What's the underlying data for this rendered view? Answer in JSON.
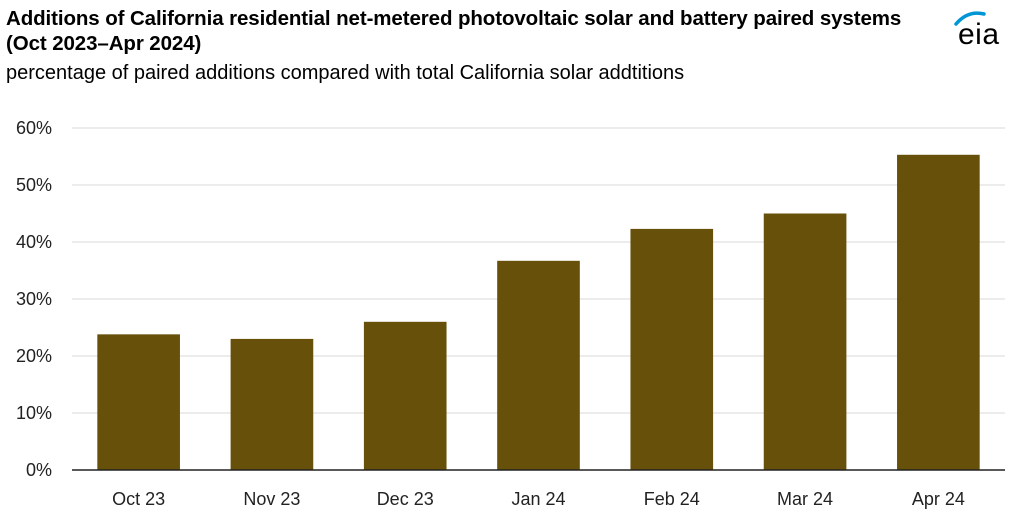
{
  "header": {
    "title": "Additions of California residential net-metered photovoltaic solar and battery paired systems (Oct 2023–Apr 2024)",
    "subtitle": "percentage of paired additions compared with total California solar addtitions"
  },
  "logo": {
    "text": "eia",
    "accent_color": "#0096d6"
  },
  "colors": {
    "bar": "#67510a",
    "grid": "#d9d9d9",
    "axis": "#222222"
  },
  "chart_data": {
    "type": "bar",
    "title": "Additions of California residential net-metered photovoltaic solar and battery paired systems (Oct 2023–Apr 2024)",
    "subtitle": "percentage of paired additions compared with total California solar addtitions",
    "xlabel": "",
    "ylabel": "",
    "categories": [
      "Oct 23",
      "Nov 23",
      "Dec 23",
      "Jan 24",
      "Feb 24",
      "Mar 24",
      "Apr 24"
    ],
    "values": [
      23.8,
      23.0,
      26.0,
      36.7,
      42.3,
      45.0,
      55.3
    ],
    "ylim": [
      0,
      60
    ],
    "yticks": [
      0,
      10,
      20,
      30,
      40,
      50,
      60
    ],
    "ytick_labels": [
      "0%",
      "10%",
      "20%",
      "30%",
      "40%",
      "50%",
      "60%"
    ],
    "grid": true,
    "legend": "none"
  }
}
